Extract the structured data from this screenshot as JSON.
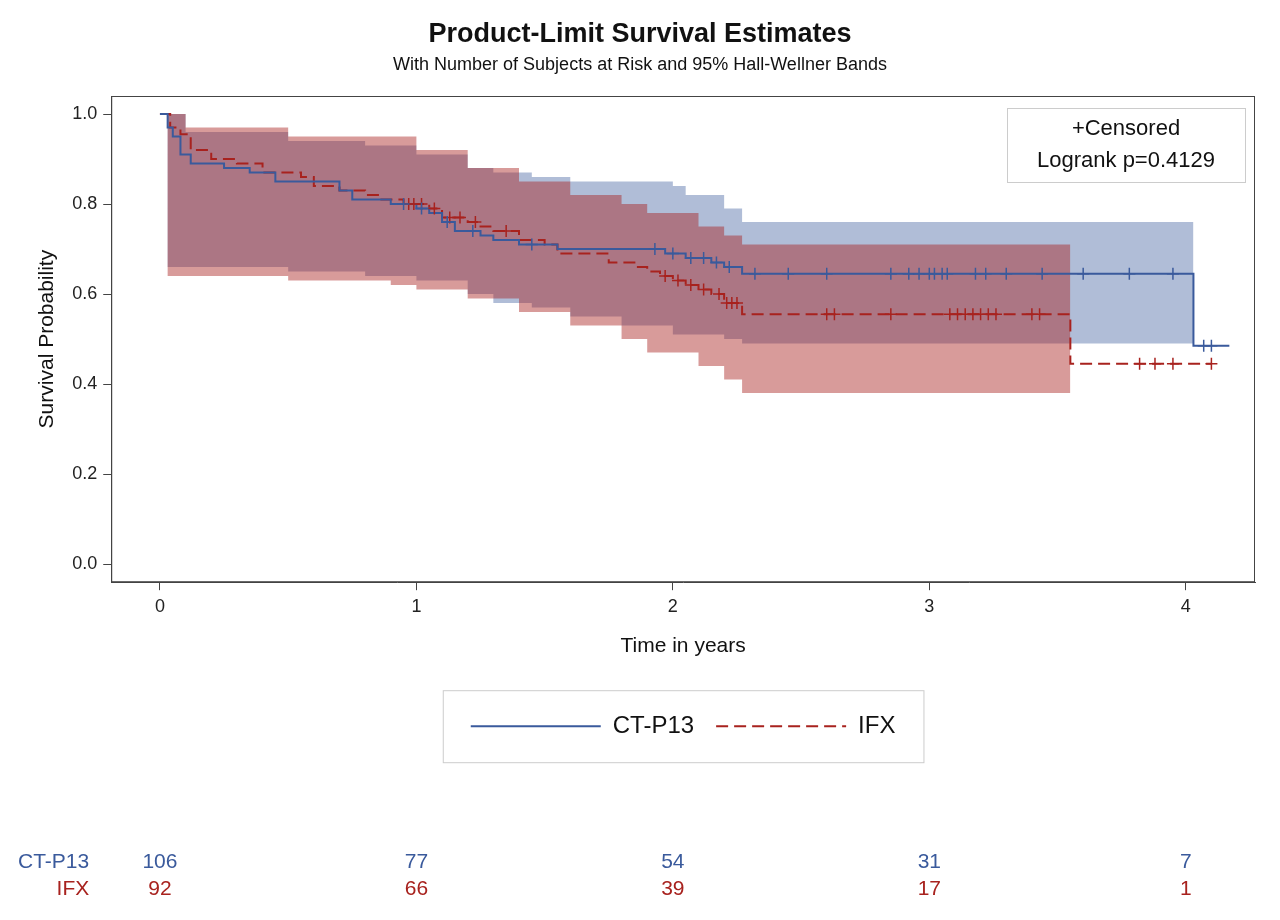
{
  "chart_data": {
    "type": "step",
    "title": "Product-Limit Survival Estimates",
    "subtitle": "With Number of Subjects at Risk and 95% Hall-Wellner Bands",
    "x_label": "Time in years",
    "y_label": "Survival Probability",
    "xlim": [
      -0.19,
      4.27
    ],
    "xticks": [
      0,
      1,
      2,
      3,
      4
    ],
    "ylim": [
      -0.04,
      1.04
    ],
    "yticks": [
      {
        "value": 0,
        "label": "0.0"
      },
      0.2,
      0.4,
      0.6,
      0.8,
      {
        "value": 1,
        "label": "1.0"
      }
    ],
    "grid": false,
    "legend": "bottom",
    "annotations": [
      "+Censored",
      "Logrank p=0.4129"
    ],
    "at_risk_x": [
      0,
      1,
      2,
      3,
      4
    ],
    "series": [
      {
        "name": "CT-P13",
        "color": "#3a5a9c",
        "line_style": "solid",
        "marker": "plus",
        "x": [
          0,
          0.03,
          0.05,
          0.08,
          0.12,
          0.25,
          0.35,
          0.45,
          0.7,
          0.75,
          0.9,
          1.0,
          1.05,
          1.1,
          1.15,
          1.25,
          1.3,
          1.4,
          1.55,
          1.97,
          2.05,
          2.15,
          2.2,
          2.27,
          4.03,
          4.17
        ],
        "values": [
          1.0,
          0.97,
          0.95,
          0.91,
          0.89,
          0.88,
          0.87,
          0.85,
          0.83,
          0.81,
          0.8,
          0.79,
          0.78,
          0.76,
          0.74,
          0.73,
          0.72,
          0.71,
          0.7,
          0.69,
          0.68,
          0.67,
          0.66,
          0.645,
          0.485,
          0.485
        ],
        "censored_x": [
          0.95,
          1.02,
          1.12,
          1.22,
          1.45,
          1.93,
          2.0,
          2.07,
          2.12,
          2.17,
          2.22,
          2.32,
          2.45,
          2.6,
          2.85,
          2.92,
          2.96,
          3.0,
          3.02,
          3.05,
          3.07,
          3.18,
          3.22,
          3.3,
          3.44,
          3.6,
          3.78,
          3.95,
          4.07,
          4.1
        ],
        "censored_y": [
          0.8,
          0.79,
          0.76,
          0.74,
          0.71,
          0.7,
          0.69,
          0.68,
          0.68,
          0.67,
          0.66,
          0.645,
          0.645,
          0.645,
          0.645,
          0.645,
          0.645,
          0.645,
          0.645,
          0.645,
          0.645,
          0.645,
          0.645,
          0.645,
          0.645,
          0.645,
          0.645,
          0.645,
          0.485,
          0.485
        ],
        "band_x": [
          0,
          0.03,
          0.1,
          0.5,
          0.8,
          1.0,
          1.2,
          1.3,
          1.45,
          1.6,
          1.8,
          2.0,
          2.05,
          2.2,
          2.27,
          4.03
        ],
        "band_upper": [
          1.0,
          1.0,
          0.96,
          0.94,
          0.93,
          0.91,
          0.88,
          0.87,
          0.86,
          0.85,
          0.85,
          0.84,
          0.82,
          0.79,
          0.76,
          0.76
        ],
        "band_lower": [
          1.0,
          0.66,
          0.66,
          0.65,
          0.64,
          0.63,
          0.6,
          0.58,
          0.57,
          0.55,
          0.53,
          0.51,
          0.51,
          0.5,
          0.49,
          0.49
        ],
        "at_risk": [
          106,
          77,
          54,
          31,
          7
        ]
      },
      {
        "name": "IFX",
        "color": "#a8221e",
        "line_style": "dashed",
        "marker": "plus",
        "x": [
          0,
          0.04,
          0.08,
          0.12,
          0.2,
          0.3,
          0.4,
          0.55,
          0.6,
          0.7,
          0.8,
          0.85,
          0.95,
          1.05,
          1.1,
          1.2,
          1.25,
          1.3,
          1.4,
          1.5,
          1.55,
          1.75,
          1.85,
          1.9,
          1.95,
          2.0,
          2.05,
          2.1,
          2.15,
          2.2,
          2.27,
          3.55,
          4.1
        ],
        "values": [
          1.0,
          0.97,
          0.955,
          0.92,
          0.9,
          0.89,
          0.87,
          0.86,
          0.84,
          0.83,
          0.82,
          0.81,
          0.8,
          0.79,
          0.77,
          0.76,
          0.75,
          0.74,
          0.72,
          0.71,
          0.69,
          0.67,
          0.66,
          0.65,
          0.64,
          0.63,
          0.62,
          0.61,
          0.6,
          0.58,
          0.555,
          0.445,
          0.445
        ],
        "censored_x": [
          0.97,
          0.99,
          1.02,
          1.07,
          1.13,
          1.17,
          1.23,
          1.35,
          1.97,
          2.02,
          2.07,
          2.12,
          2.18,
          2.21,
          2.23,
          2.25,
          2.6,
          2.63,
          2.85,
          3.08,
          3.11,
          3.14,
          3.17,
          3.2,
          3.23,
          3.26,
          3.4,
          3.43,
          3.82,
          3.88,
          3.95,
          4.1
        ],
        "censored_y": [
          0.8,
          0.8,
          0.8,
          0.79,
          0.77,
          0.77,
          0.76,
          0.74,
          0.64,
          0.63,
          0.62,
          0.61,
          0.6,
          0.58,
          0.58,
          0.58,
          0.555,
          0.555,
          0.555,
          0.555,
          0.555,
          0.555,
          0.555,
          0.555,
          0.555,
          0.555,
          0.555,
          0.555,
          0.445,
          0.445,
          0.445,
          0.445
        ],
        "band_x": [
          0,
          0.03,
          0.1,
          0.5,
          0.9,
          1.0,
          1.2,
          1.4,
          1.6,
          1.8,
          1.9,
          2.1,
          2.2,
          2.27,
          3.55
        ],
        "band_upper": [
          1.0,
          1.0,
          0.97,
          0.95,
          0.95,
          0.92,
          0.88,
          0.85,
          0.82,
          0.8,
          0.78,
          0.75,
          0.73,
          0.71,
          0.71
        ],
        "band_lower": [
          1.0,
          0.64,
          0.64,
          0.63,
          0.62,
          0.61,
          0.59,
          0.56,
          0.53,
          0.5,
          0.47,
          0.44,
          0.41,
          0.38,
          0.38
        ],
        "at_risk": [
          92,
          66,
          39,
          17,
          1
        ]
      }
    ]
  }
}
